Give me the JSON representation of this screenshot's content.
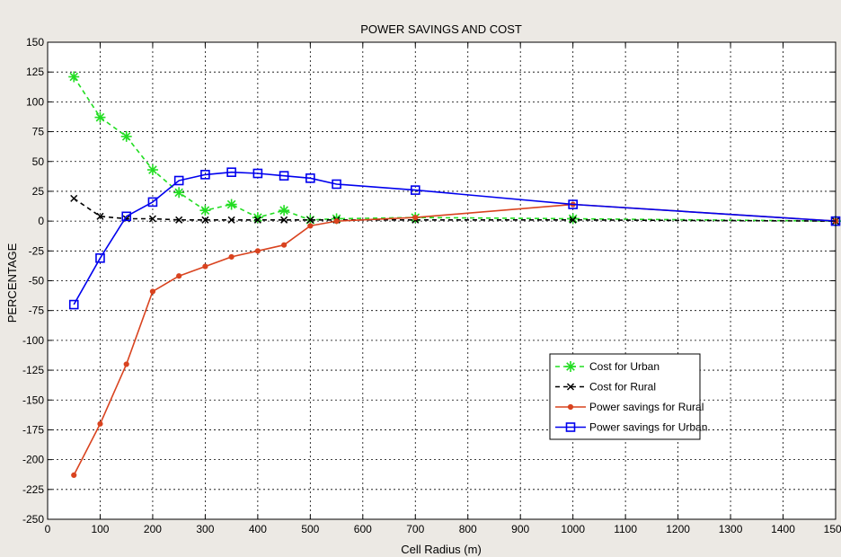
{
  "chart_data": {
    "type": "line",
    "title": "POWER SAVINGS AND COST",
    "xlabel": "Cell Radius (m)",
    "ylabel": "PERCENTAGE",
    "xlim": [
      0,
      1500
    ],
    "ylim": [
      -250,
      150
    ],
    "xticks": [
      0,
      100,
      200,
      300,
      400,
      500,
      600,
      700,
      800,
      900,
      1000,
      1100,
      1200,
      1300,
      1400,
      1500
    ],
    "yticks": [
      150,
      125,
      100,
      75,
      50,
      25,
      0,
      -25,
      -50,
      -75,
      -100,
      -125,
      -150,
      -175,
      -200,
      -225,
      -250
    ],
    "grid": true,
    "legend_position": "lower-right",
    "background_color": "#ffffff",
    "figure_color": "#ece9e4",
    "series": [
      {
        "name": "Cost  for Urban",
        "color": "#22dd22",
        "line_style": "dashed",
        "marker": "star",
        "x": [
          50,
          100,
          150,
          200,
          250,
          300,
          350,
          400,
          450,
          500,
          550,
          700,
          1000,
          1500
        ],
        "y": [
          121,
          87,
          71,
          43,
          24,
          9,
          14,
          3,
          9,
          1,
          2,
          3,
          2,
          0
        ]
      },
      {
        "name": "Cost for Rural",
        "color": "#000000",
        "line_style": "dashed",
        "marker": "x",
        "x": [
          50,
          100,
          150,
          200,
          250,
          300,
          350,
          400,
          450,
          500,
          550,
          700,
          1000,
          1500
        ],
        "y": [
          19,
          4,
          2,
          2,
          1,
          1,
          1,
          1,
          1,
          1,
          1,
          1,
          1,
          0
        ]
      },
      {
        "name": "Power savings for Rural",
        "color": "#d9431f",
        "line_style": "solid",
        "marker": "dot",
        "x": [
          50,
          100,
          150,
          200,
          250,
          300,
          350,
          400,
          450,
          500,
          550,
          700,
          1000,
          1500
        ],
        "y": [
          -213,
          -170,
          -120,
          -59,
          -46,
          -38,
          -30,
          -25,
          -20,
          -4,
          0,
          3,
          14,
          0
        ]
      },
      {
        "name": "Power savings for Urban",
        "color": "#0000ee",
        "line_style": "solid",
        "marker": "square",
        "x": [
          50,
          100,
          150,
          200,
          250,
          300,
          350,
          400,
          450,
          500,
          550,
          700,
          1000,
          1500
        ],
        "y": [
          -70,
          -31,
          4,
          16,
          34,
          39,
          41,
          40,
          38,
          36,
          31,
          26,
          14,
          0
        ]
      }
    ]
  }
}
